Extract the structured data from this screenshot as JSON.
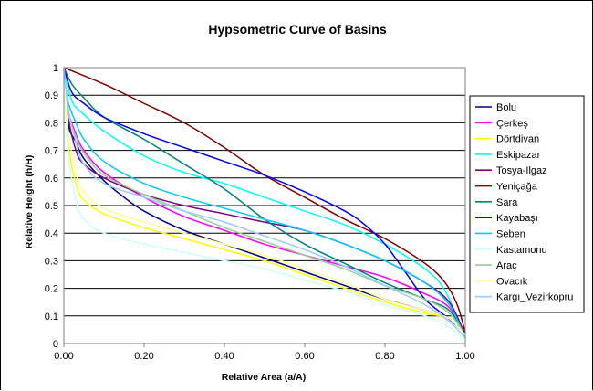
{
  "chart_data": {
    "type": "line",
    "title": "Hypsometric Curve of Basins",
    "xlabel": "Relative Area (a/A)",
    "ylabel": "Relative Height (h/H)",
    "xlim": [
      0,
      1
    ],
    "ylim": [
      0,
      1
    ],
    "x_ticks": [
      "0.00",
      "0.20",
      "0.40",
      "0.60",
      "0.80",
      "1.00"
    ],
    "y_ticks": [
      "0",
      "0.1",
      "0.2",
      "0.3",
      "0.4",
      "0.5",
      "0.6",
      "0.7",
      "0.8",
      "0.9",
      "1"
    ],
    "grid": "horizontal",
    "legend_position": "right",
    "series": [
      {
        "name": "Bolu",
        "color": "#000080",
        "points": [
          [
            0,
            1
          ],
          [
            0.01,
            0.8
          ],
          [
            0.03,
            0.73
          ],
          [
            0.05,
            0.67
          ],
          [
            0.1,
            0.59
          ],
          [
            0.15,
            0.53
          ],
          [
            0.2,
            0.48
          ],
          [
            0.3,
            0.41
          ],
          [
            0.4,
            0.36
          ],
          [
            0.5,
            0.31
          ],
          [
            0.6,
            0.26
          ],
          [
            0.7,
            0.21
          ],
          [
            0.8,
            0.16
          ],
          [
            0.9,
            0.12
          ],
          [
            0.96,
            0.09
          ],
          [
            1,
            0.03
          ]
        ]
      },
      {
        "name": "Çerkeş",
        "color": "#ff00ff",
        "points": [
          [
            0,
            1
          ],
          [
            0.01,
            0.85
          ],
          [
            0.03,
            0.76
          ],
          [
            0.05,
            0.7
          ],
          [
            0.1,
            0.62
          ],
          [
            0.2,
            0.53
          ],
          [
            0.3,
            0.46
          ],
          [
            0.4,
            0.41
          ],
          [
            0.5,
            0.36
          ],
          [
            0.6,
            0.32
          ],
          [
            0.7,
            0.28
          ],
          [
            0.8,
            0.24
          ],
          [
            0.9,
            0.18
          ],
          [
            0.96,
            0.13
          ],
          [
            1,
            0.03
          ]
        ]
      },
      {
        "name": "Dörtdivan",
        "color": "#ffff00",
        "points": [
          [
            0,
            1
          ],
          [
            0.01,
            0.73
          ],
          [
            0.03,
            0.58
          ],
          [
            0.05,
            0.52
          ],
          [
            0.1,
            0.47
          ],
          [
            0.2,
            0.42
          ],
          [
            0.3,
            0.38
          ],
          [
            0.4,
            0.34
          ],
          [
            0.5,
            0.3
          ],
          [
            0.6,
            0.25
          ],
          [
            0.7,
            0.2
          ],
          [
            0.8,
            0.15
          ],
          [
            0.9,
            0.11
          ],
          [
            0.96,
            0.09
          ],
          [
            1,
            0.03
          ]
        ]
      },
      {
        "name": "Eskipazar",
        "color": "#00ffff",
        "points": [
          [
            0,
            1
          ],
          [
            0.02,
            0.88
          ],
          [
            0.05,
            0.83
          ],
          [
            0.1,
            0.77
          ],
          [
            0.2,
            0.68
          ],
          [
            0.3,
            0.62
          ],
          [
            0.4,
            0.58
          ],
          [
            0.5,
            0.53
          ],
          [
            0.6,
            0.48
          ],
          [
            0.7,
            0.43
          ],
          [
            0.8,
            0.36
          ],
          [
            0.9,
            0.27
          ],
          [
            0.95,
            0.19
          ],
          [
            1,
            0.02
          ]
        ]
      },
      {
        "name": "Tosya-Ilgaz",
        "color": "#800080",
        "points": [
          [
            0,
            1
          ],
          [
            0.01,
            0.83
          ],
          [
            0.03,
            0.7
          ],
          [
            0.05,
            0.65
          ],
          [
            0.1,
            0.6
          ],
          [
            0.2,
            0.54
          ],
          [
            0.3,
            0.5
          ],
          [
            0.4,
            0.47
          ],
          [
            0.5,
            0.44
          ],
          [
            0.6,
            0.41
          ],
          [
            0.7,
            0.36
          ],
          [
            0.8,
            0.3
          ],
          [
            0.9,
            0.22
          ],
          [
            0.96,
            0.15
          ],
          [
            1,
            0.03
          ]
        ]
      },
      {
        "name": "Yeniçağa",
        "color": "#800000",
        "points": [
          [
            0,
            1
          ],
          [
            0.1,
            0.94
          ],
          [
            0.2,
            0.87
          ],
          [
            0.3,
            0.8
          ],
          [
            0.4,
            0.71
          ],
          [
            0.5,
            0.61
          ],
          [
            0.6,
            0.53
          ],
          [
            0.7,
            0.45
          ],
          [
            0.8,
            0.38
          ],
          [
            0.9,
            0.29
          ],
          [
            0.95,
            0.22
          ],
          [
            0.98,
            0.14
          ],
          [
            1,
            0.04
          ]
        ]
      },
      {
        "name": "Sara",
        "color": "#008080",
        "points": [
          [
            0,
            1
          ],
          [
            0.02,
            0.94
          ],
          [
            0.05,
            0.89
          ],
          [
            0.1,
            0.82
          ],
          [
            0.2,
            0.74
          ],
          [
            0.3,
            0.65
          ],
          [
            0.4,
            0.56
          ],
          [
            0.5,
            0.45
          ],
          [
            0.6,
            0.36
          ],
          [
            0.7,
            0.29
          ],
          [
            0.8,
            0.22
          ],
          [
            0.9,
            0.16
          ],
          [
            0.96,
            0.12
          ],
          [
            1,
            0.03
          ]
        ]
      },
      {
        "name": "Kayabaşı",
        "color": "#0000ff",
        "points": [
          [
            0,
            1
          ],
          [
            0.02,
            0.91
          ],
          [
            0.05,
            0.87
          ],
          [
            0.1,
            0.82
          ],
          [
            0.2,
            0.76
          ],
          [
            0.3,
            0.71
          ],
          [
            0.4,
            0.66
          ],
          [
            0.5,
            0.61
          ],
          [
            0.6,
            0.55
          ],
          [
            0.7,
            0.48
          ],
          [
            0.75,
            0.43
          ],
          [
            0.8,
            0.36
          ],
          [
            0.85,
            0.26
          ],
          [
            0.9,
            0.16
          ],
          [
            0.95,
            0.1
          ],
          [
            1,
            0.04
          ]
        ]
      },
      {
        "name": "Seben",
        "color": "#00ccff",
        "points": [
          [
            0,
            1
          ],
          [
            0.01,
            0.88
          ],
          [
            0.03,
            0.8
          ],
          [
            0.05,
            0.74
          ],
          [
            0.1,
            0.66
          ],
          [
            0.2,
            0.58
          ],
          [
            0.3,
            0.53
          ],
          [
            0.4,
            0.49
          ],
          [
            0.5,
            0.45
          ],
          [
            0.6,
            0.41
          ],
          [
            0.7,
            0.36
          ],
          [
            0.8,
            0.3
          ],
          [
            0.9,
            0.22
          ],
          [
            0.96,
            0.14
          ],
          [
            1,
            0.02
          ]
        ]
      },
      {
        "name": "Kastamonu",
        "color": "#ccffff",
        "points": [
          [
            0,
            1
          ],
          [
            0.01,
            0.7
          ],
          [
            0.03,
            0.52
          ],
          [
            0.05,
            0.45
          ],
          [
            0.1,
            0.4
          ],
          [
            0.2,
            0.36
          ],
          [
            0.3,
            0.33
          ],
          [
            0.4,
            0.3
          ],
          [
            0.5,
            0.27
          ],
          [
            0.6,
            0.23
          ],
          [
            0.7,
            0.19
          ],
          [
            0.8,
            0.14
          ],
          [
            0.9,
            0.1
          ],
          [
            0.96,
            0.06
          ],
          [
            1,
            0.01
          ]
        ]
      },
      {
        "name": "Araç",
        "color": "#99cc99",
        "points": [
          [
            0,
            1
          ],
          [
            0.01,
            0.84
          ],
          [
            0.03,
            0.75
          ],
          [
            0.05,
            0.69
          ],
          [
            0.1,
            0.61
          ],
          [
            0.2,
            0.54
          ],
          [
            0.3,
            0.48
          ],
          [
            0.4,
            0.42
          ],
          [
            0.5,
            0.37
          ],
          [
            0.6,
            0.32
          ],
          [
            0.7,
            0.27
          ],
          [
            0.8,
            0.21
          ],
          [
            0.9,
            0.16
          ],
          [
            0.96,
            0.11
          ],
          [
            1,
            0.03
          ]
        ]
      },
      {
        "name": "Ovacık",
        "color": "#ffff99",
        "points": [
          [
            0,
            1
          ],
          [
            0.01,
            0.78
          ],
          [
            0.03,
            0.62
          ],
          [
            0.05,
            0.55
          ],
          [
            0.1,
            0.49
          ],
          [
            0.2,
            0.44
          ],
          [
            0.3,
            0.4
          ],
          [
            0.4,
            0.36
          ],
          [
            0.5,
            0.32
          ],
          [
            0.6,
            0.27
          ],
          [
            0.7,
            0.22
          ],
          [
            0.8,
            0.16
          ],
          [
            0.9,
            0.12
          ],
          [
            0.96,
            0.09
          ],
          [
            1,
            0.03
          ]
        ]
      },
      {
        "name": "Kargı_Vezirkopru",
        "color": "#99ccff",
        "points": [
          [
            0,
            1
          ],
          [
            0.01,
            0.86
          ],
          [
            0.03,
            0.73
          ],
          [
            0.05,
            0.65
          ],
          [
            0.1,
            0.58
          ],
          [
            0.2,
            0.53
          ],
          [
            0.3,
            0.48
          ],
          [
            0.4,
            0.44
          ],
          [
            0.5,
            0.39
          ],
          [
            0.6,
            0.34
          ],
          [
            0.7,
            0.28
          ],
          [
            0.8,
            0.21
          ],
          [
            0.9,
            0.14
          ],
          [
            0.96,
            0.08
          ],
          [
            1,
            0.02
          ]
        ]
      }
    ]
  }
}
